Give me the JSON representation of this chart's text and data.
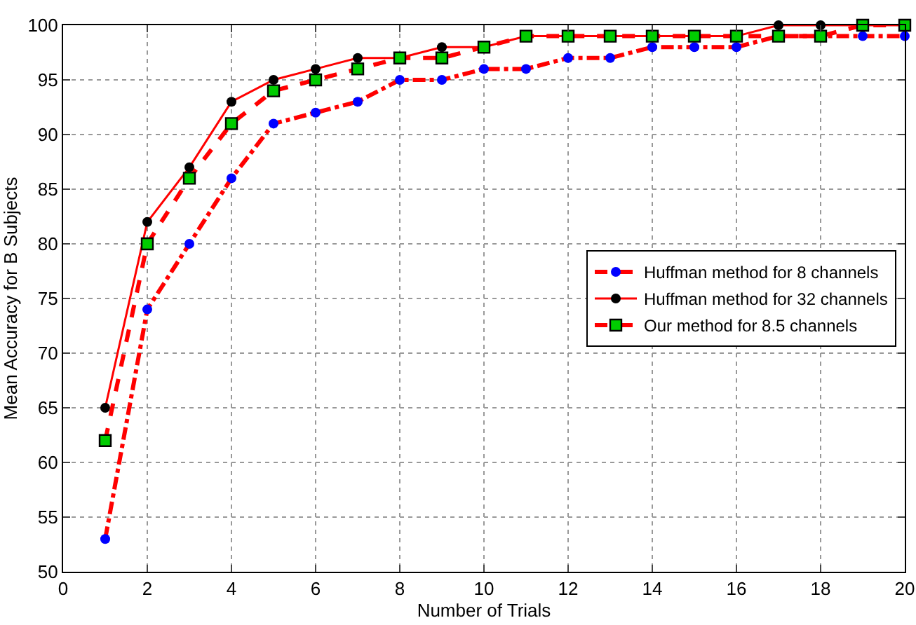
{
  "chart_data": {
    "type": "line",
    "xlabel": "Number of Trials",
    "ylabel": "Mean Accuracy for B Subjects",
    "x": [
      1,
      2,
      3,
      4,
      5,
      6,
      7,
      8,
      9,
      10,
      11,
      12,
      13,
      14,
      15,
      16,
      17,
      18,
      19,
      20
    ],
    "series": [
      {
        "name": "Huffman method for 8 channels",
        "color": "#ff0000",
        "colors": [
          "#0000ff",
          "#0000ff",
          "#0000ff",
          "#0000ff",
          "#0000ff",
          "#0000ff",
          "#0000ff",
          "#0000ff",
          "#0000ff",
          "#0000ff",
          "#0000ff",
          "#0000ff",
          "#0000ff",
          "#0000ff",
          "#0000ff",
          "#0000ff",
          "#0000ff",
          "#0000ff",
          "#0000ff",
          "#0000ff"
        ],
        "marker": "circle",
        "line_style": "dashdot",
        "values": [
          53,
          74,
          80,
          86,
          91,
          92,
          93,
          95,
          95,
          96,
          96,
          97,
          97,
          98,
          98,
          98,
          99,
          99,
          99,
          99
        ]
      },
      {
        "name": "Huffman method for 32 channels",
        "color": "#ff0000",
        "colors": [
          "#000000",
          "#000000",
          "#000000",
          "#000000",
          "#000000",
          "#000000",
          "#000000",
          "#000000",
          "#000000",
          "#000000",
          "#000000",
          "#000000",
          "#000000",
          "#000000",
          "#000000",
          "#000000",
          "#000000",
          "#000000",
          "#000000",
          "#000000"
        ],
        "marker": "circle",
        "line_style": "solid",
        "values": [
          65,
          82,
          87,
          93,
          95,
          96,
          97,
          97,
          98,
          98,
          99,
          99,
          99,
          99,
          99,
          99,
          100,
          100,
          100,
          100
        ]
      },
      {
        "name": "Our method for 8.5 channels",
        "color": "#ff0000",
        "colors": [
          "#00cc00",
          "#00cc00",
          "#00cc00",
          "#00cc00",
          "#00cc00",
          "#00cc00",
          "#00cc00",
          "#00cc00",
          "#00cc00",
          "#00cc00",
          "#00cc00",
          "#00cc00",
          "#00cc00",
          "#00cc00",
          "#00cc00",
          "#00cc00",
          "#00cc00",
          "#00cc00",
          "#00cc00",
          "#00cc00"
        ],
        "marker": "square",
        "line_style": "dashed",
        "values": [
          62,
          80,
          86,
          91,
          94,
          95,
          96,
          97,
          97,
          98,
          99,
          99,
          99,
          99,
          99,
          99,
          99,
          99,
          100,
          100
        ]
      }
    ],
    "xlim": [
      0,
      20
    ],
    "xticks": [
      0,
      2,
      4,
      6,
      8,
      10,
      12,
      14,
      16,
      18,
      20
    ],
    "ylim": [
      50,
      100
    ],
    "yticks": [
      50,
      55,
      60,
      65,
      70,
      75,
      80,
      85,
      90,
      95,
      100
    ],
    "grid": true,
    "legend": "right"
  }
}
